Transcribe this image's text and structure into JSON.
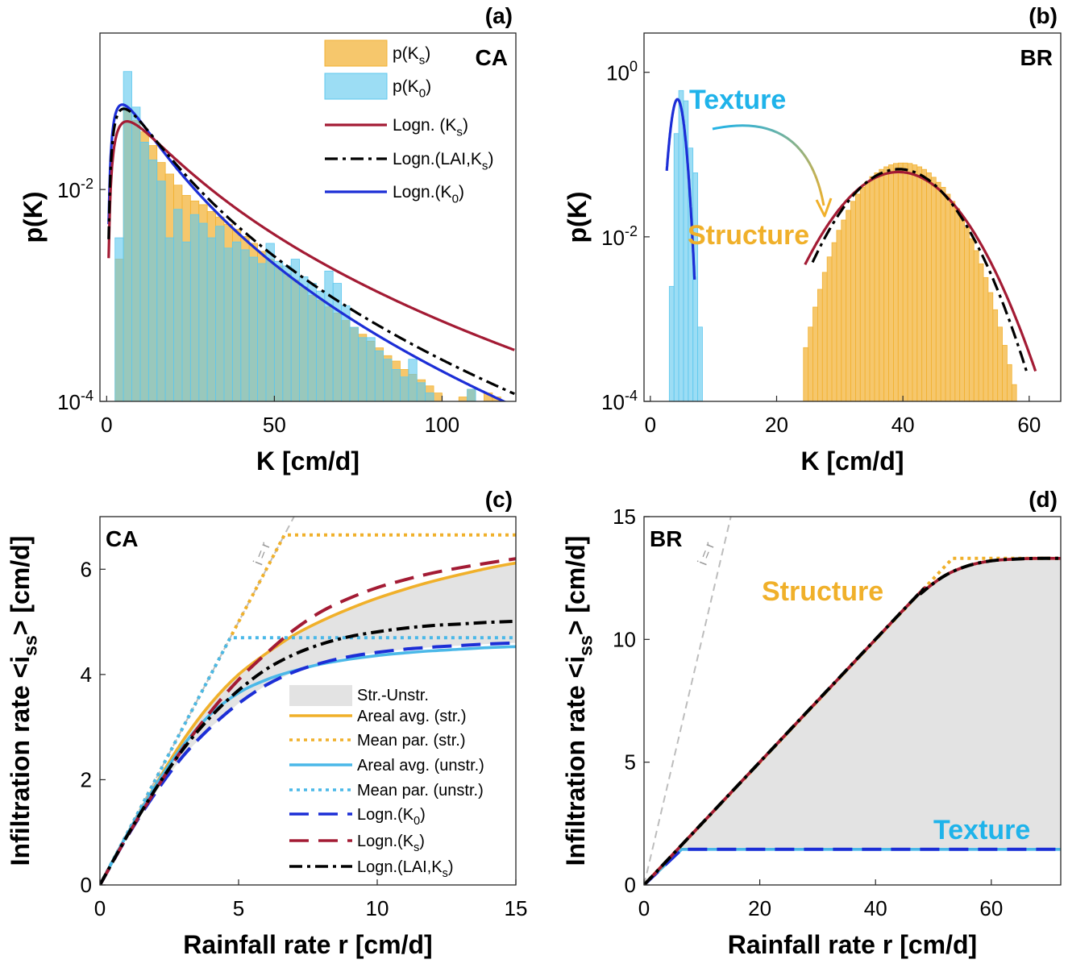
{
  "chart_data": [
    {
      "panel_id": "a",
      "panel_label": "(a)",
      "type": "bar",
      "site": "CA",
      "xlabel": "K [cm/d]",
      "ylabel": "p(K)",
      "yscale": "log",
      "xlim": [
        -2,
        122
      ],
      "ylim": [
        0.0001,
        0.3
      ],
      "xticks": [
        0,
        50,
        100
      ],
      "xtick_labels": [
        "0",
        "50",
        "100"
      ],
      "ytick_labels": [
        {
          "base": "10",
          "exp": "-4",
          "value": 0.0001
        },
        {
          "base": "10",
          "exp": "-2",
          "value": 0.01
        }
      ],
      "legend": [
        "p(Ks)",
        "p(K0)",
        "Logn. (Ks)",
        "Logn.(LAI,Ks)",
        "Logn.(K0)"
      ],
      "legend_labels": [
        {
          "main": "p(K",
          "sub": "s",
          "tail": ")"
        },
        {
          "main": "p(K",
          "sub": "0",
          "tail": ")"
        },
        {
          "main": "Logn. (K",
          "sub": "s",
          "tail": ")"
        },
        {
          "main": "Logn.(LAI,K",
          "sub": "s",
          "tail": ")"
        },
        {
          "main": "Logn.(K",
          "sub": "0",
          "tail": ")"
        }
      ],
      "legend_location": "top-right",
      "bin_width": 2.5,
      "bins_start": 2.5,
      "histograms": [
        {
          "name": "p(Ks)",
          "color": "#f2b233",
          "values": [
            0.0022,
            0.055,
            0.045,
            0.035,
            0.026,
            0.018,
            0.014,
            0.011,
            0.0088,
            0.0078,
            0.0072,
            0.0062,
            0.0055,
            0.0047,
            0.0042,
            0.0036,
            0.0031,
            0.0026,
            0.0022,
            0.0019,
            0.0016,
            0.0014,
            0.0012,
            0.001,
            0.0009,
            0.00078,
            0.00068,
            0.00058,
            0.0005,
            0.00043,
            0.00037,
            0.00032,
            0.00027,
            0.00024,
            0.0002,
            0.00018,
            0.00016,
            0.00014,
            0.00012,
            0.0001,
            0.0001,
            0.00011,
            0.00013,
            0.0001,
            0.00012,
            0.00011
          ]
        },
        {
          "name": "p(K0)",
          "color": "#5fc8ee",
          "values": [
            0.0035,
            0.13,
            0.06,
            0.028,
            0.019,
            0.012,
            0.0035,
            0.0065,
            0.0032,
            0.0058,
            0.0048,
            0.0035,
            0.0045,
            0.0028,
            0.0032,
            0.0027,
            0.0023,
            0.002,
            0.0031,
            0.0021,
            0.0019,
            0.0022,
            0.0015,
            0.0013,
            0.0011,
            0.0017,
            0.0013,
            0.0008,
            0.0005,
            0.0004,
            0.0004,
            0.0003,
            0.00025,
            0.0002,
            0.00017,
            0.00025,
            0.00015,
            0.00012,
            0.0,
            0.0,
            0.0,
            0.0,
            0.00013,
            0.0,
            0.0,
            0.0
          ]
        }
      ],
      "lognormal_curves": [
        {
          "name": "Logn. (Ks)",
          "color": "#a31b34",
          "style": "solid",
          "median": 15,
          "sigma": 0.95
        },
        {
          "name": "Logn.(LAI,Ks)",
          "color": "#000000",
          "style": "dashdot",
          "median": 11.5,
          "sigma": 0.9
        },
        {
          "name": "Logn.(K0)",
          "color": "#1c2ed6",
          "style": "solid",
          "median": 10.5,
          "sigma": 0.9
        }
      ]
    },
    {
      "panel_id": "b",
      "panel_label": "(b)",
      "type": "bar",
      "site": "BR",
      "xlabel": "K [cm/d]",
      "ylabel": "p(K)",
      "yscale": "log",
      "xlim": [
        -1,
        65
      ],
      "ylim": [
        0.0001,
        3
      ],
      "xticks": [
        0,
        20,
        40,
        60
      ],
      "xtick_labels": [
        "0",
        "20",
        "40",
        "60"
      ],
      "ytick_labels": [
        {
          "base": "10",
          "exp": "-4",
          "value": 0.0001
        },
        {
          "base": "10",
          "exp": "-2",
          "value": 0.01
        },
        {
          "base": "10",
          "exp": "0",
          "value": 1
        }
      ],
      "annotations": [
        "Texture",
        "Structure"
      ],
      "histograms": [
        {
          "name": "p(Ks)",
          "color": "#f2b233",
          "bins_start": 24.25,
          "bin_width": 0.75,
          "values": [
            0.00045,
            0.0008,
            0.0014,
            0.0023,
            0.0037,
            0.0057,
            0.0085,
            0.012,
            0.016,
            0.021,
            0.027,
            0.033,
            0.04,
            0.047,
            0.054,
            0.06,
            0.066,
            0.071,
            0.075,
            0.078,
            0.079,
            0.079,
            0.078,
            0.075,
            0.071,
            0.066,
            0.06,
            0.053,
            0.046,
            0.04,
            0.033,
            0.027,
            0.022,
            0.017,
            0.013,
            0.0095,
            0.0068,
            0.0047,
            0.0032,
            0.0021,
            0.0013,
            0.0008,
            0.00048,
            0.00028,
            0.00016
          ]
        },
        {
          "name": "p(K0)",
          "color": "#5fc8ee",
          "bins_start": 3.0,
          "bin_width": 0.75,
          "values": [
            0.0025,
            0.18,
            0.6,
            0.45,
            0.12,
            0.06,
            0.0008
          ]
        }
      ],
      "normal_curves": [
        {
          "name": "Logn. (Ks)",
          "color": "#a31b34",
          "style": "solid",
          "mean": 39.3,
          "sd": 6.5,
          "from": 24.5,
          "to": 61
        },
        {
          "name": "Logn.(LAI,Ks)",
          "color": "#000000",
          "style": "dashdot",
          "mean": 39.4,
          "sd": 6.0,
          "from": 25.7,
          "to": 59.7
        },
        {
          "name": "Logn.(K0)",
          "color": "#1c2ed6",
          "style": "solid",
          "mean": 4.3,
          "sd": 0.85,
          "from": 2.6,
          "to": 7.0
        }
      ]
    },
    {
      "panel_id": "c",
      "panel_label": "(c)",
      "type": "line",
      "site": "CA",
      "xlabel": "Rainfall rate r [cm/d]",
      "ylabel": "Infiltration rate <iss> [cm/d]",
      "ylabel_parts": {
        "main": "Infiltration rate <i",
        "sub": "ss",
        "tail": "> [cm/d]"
      },
      "xlim": [
        0,
        15
      ],
      "ylim": [
        0,
        7
      ],
      "xticks": [
        0,
        5,
        10,
        15
      ],
      "xtick_labels": [
        "0",
        "5",
        "10",
        "15"
      ],
      "yticks": [
        0,
        2,
        4,
        6
      ],
      "ytick_labels": [
        "0",
        "2",
        "4",
        "6"
      ],
      "ref_line_label": "i = r",
      "legend": [
        "Str.-Unstr.",
        "Areal avg. (str.)",
        "Mean par. (str.)",
        "Areal avg. (unstr.)",
        "Mean par. (unstr.)",
        "Logn.(K0)",
        "Logn.(Ks)",
        "Logn.(LAI,Ks)"
      ],
      "legend_labels": [
        {
          "main": "Str.-Unstr.",
          "sub": "",
          "tail": ""
        },
        {
          "main": "Areal avg. (str.)",
          "sub": "",
          "tail": ""
        },
        {
          "main": "Mean par. (str.)",
          "sub": "",
          "tail": ""
        },
        {
          "main": "Areal avg. (unstr.)",
          "sub": "",
          "tail": ""
        },
        {
          "main": "Mean par. (unstr.)",
          "sub": "",
          "tail": ""
        },
        {
          "main": "Logn.(K",
          "sub": "0",
          "tail": ")"
        },
        {
          "main": "Logn.(K",
          "sub": "s",
          "tail": ")"
        },
        {
          "main": "Logn.(LAI,K",
          "sub": "s",
          "tail": ")"
        }
      ],
      "legend_location": "lower-right",
      "series": [
        {
          "name": "Areal avg. (str.)",
          "color": "#f0b02a",
          "style": "solid",
          "x": [
            0,
            1,
            2,
            3,
            4,
            5,
            6,
            7,
            8,
            9,
            10,
            11,
            12,
            13,
            14,
            15
          ],
          "y": [
            0,
            0.98,
            1.9,
            2.75,
            3.45,
            4.0,
            4.4,
            4.75,
            5.02,
            5.25,
            5.45,
            5.62,
            5.77,
            5.9,
            6.02,
            6.12
          ]
        },
        {
          "name": "Mean par. (str.)",
          "color": "#f0b02a",
          "style": "dotted",
          "x": [
            0,
            6.65,
            15
          ],
          "y": [
            0,
            6.65,
            6.65
          ]
        },
        {
          "name": "Areal avg. (unstr.)",
          "color": "#4ab8e8",
          "style": "solid",
          "x": [
            0,
            1,
            2,
            3,
            4,
            5,
            6,
            7,
            8,
            9,
            10,
            11,
            12,
            13,
            14,
            15
          ],
          "y": [
            0,
            0.98,
            1.88,
            2.65,
            3.25,
            3.65,
            3.9,
            4.07,
            4.2,
            4.29,
            4.36,
            4.41,
            4.45,
            4.48,
            4.51,
            4.53
          ]
        },
        {
          "name": "Mean par. (unstr.)",
          "color": "#4ab8e8",
          "style": "dotted",
          "x": [
            0,
            4.7,
            15
          ],
          "y": [
            0,
            4.7,
            4.7
          ]
        },
        {
          "name": "Logn.(K0)",
          "color": "#1c2ed6",
          "style": "dashed",
          "x": [
            0,
            1,
            2,
            3,
            4,
            5,
            6,
            7,
            8,
            9,
            10,
            11,
            12,
            13,
            14,
            15
          ],
          "y": [
            0,
            0.93,
            1.75,
            2.45,
            3.0,
            3.45,
            3.8,
            4.05,
            4.22,
            4.34,
            4.42,
            4.48,
            4.52,
            4.55,
            4.58,
            4.6
          ]
        },
        {
          "name": "Logn.(Ks)",
          "color": "#a31b34",
          "style": "dashed",
          "x": [
            0,
            1,
            2,
            3,
            4,
            5,
            6,
            7,
            8,
            9,
            10,
            11,
            12,
            13,
            14,
            15
          ],
          "y": [
            0,
            0.94,
            1.8,
            2.6,
            3.3,
            3.9,
            4.4,
            4.85,
            5.2,
            5.45,
            5.65,
            5.8,
            5.93,
            6.03,
            6.12,
            6.2
          ]
        },
        {
          "name": "Logn.(LAI,Ks)",
          "color": "#000000",
          "style": "dashdot",
          "x": [
            0,
            1,
            2,
            3,
            4,
            5,
            6,
            7,
            8,
            9,
            10,
            11,
            12,
            13,
            14,
            15
          ],
          "y": [
            0,
            0.95,
            1.82,
            2.58,
            3.2,
            3.7,
            4.1,
            4.38,
            4.58,
            4.72,
            4.81,
            4.88,
            4.93,
            4.96,
            4.99,
            5.01
          ]
        }
      ],
      "shade_between": [
        "Logn.(K0)",
        "Areal avg. (str.)"
      ]
    },
    {
      "panel_id": "d",
      "panel_label": "(d)",
      "type": "line",
      "site": "BR",
      "xlabel": "Rainfall rate r [cm/d]",
      "ylabel": "Infiltration rate <iss> [cm/d]",
      "ylabel_parts": {
        "main": "Infiltration rate <i",
        "sub": "ss",
        "tail": "> [cm/d]"
      },
      "xlim": [
        0,
        72
      ],
      "ylim": [
        0,
        15
      ],
      "xticks": [
        0,
        20,
        40,
        60
      ],
      "xtick_labels": [
        "0",
        "20",
        "40",
        "60"
      ],
      "yticks": [
        0,
        5,
        10,
        15
      ],
      "ytick_labels": [
        "0",
        "5",
        "10",
        "15"
      ],
      "ref_line_label": "i = r",
      "annotations": [
        "Structure",
        "Texture"
      ],
      "series": [
        {
          "name": "Texture (unstr.)",
          "color": "#4ab8e8",
          "style": "solid",
          "x": [
            0,
            6.5,
            72
          ],
          "y": [
            0,
            1.45,
            1.45
          ]
        },
        {
          "name": "Logn.(K0)",
          "color": "#1c2ed6",
          "style": "dashed",
          "x": [
            0,
            6.5,
            72
          ],
          "y": [
            0,
            1.45,
            1.45
          ]
        },
        {
          "name": "Mean par. (str.)",
          "color": "#f0b02a",
          "style": "dotted",
          "x": [
            0,
            53.3,
            72
          ],
          "y": [
            0,
            13.3,
            13.3
          ]
        },
        {
          "name": "Areal avg. (str.)",
          "color": "#f0b02a",
          "style": "solid",
          "x": [
            0,
            44,
            48,
            52,
            56,
            60,
            64,
            68,
            72
          ],
          "y": [
            0,
            11.0,
            11.9,
            12.6,
            13.0,
            13.2,
            13.27,
            13.3,
            13.3
          ]
        },
        {
          "name": "Logn.(Ks)",
          "color": "#a31b34",
          "style": "solid",
          "x": [
            0,
            44,
            48,
            52,
            56,
            60,
            64,
            68,
            72
          ],
          "y": [
            0,
            11.0,
            11.9,
            12.6,
            13.0,
            13.2,
            13.27,
            13.3,
            13.3
          ]
        },
        {
          "name": "Logn.(LAI,Ks)",
          "color": "#000000",
          "style": "dashdot",
          "x": [
            0,
            44,
            48,
            52,
            56,
            60,
            64,
            68,
            72
          ],
          "y": [
            0,
            11.0,
            11.9,
            12.6,
            13.0,
            13.2,
            13.27,
            13.3,
            13.3
          ]
        }
      ],
      "shade_between": [
        "Logn.(LAI,Ks)",
        "Texture (unstr.)"
      ]
    }
  ],
  "colors": {
    "orange_fill": "#f2b233",
    "blue_fill": "#5fc8ee",
    "dark_red": "#a31b34",
    "blue_line": "#1c2ed6",
    "black": "#000000",
    "orange_line": "#f0b02a",
    "light_blue_line": "#4ab8e8",
    "shade": "#e3e3e3",
    "ref_gray": "#bdbdbd",
    "texture_text": "#1fb3ea",
    "structure_text": "#f0b02a"
  }
}
